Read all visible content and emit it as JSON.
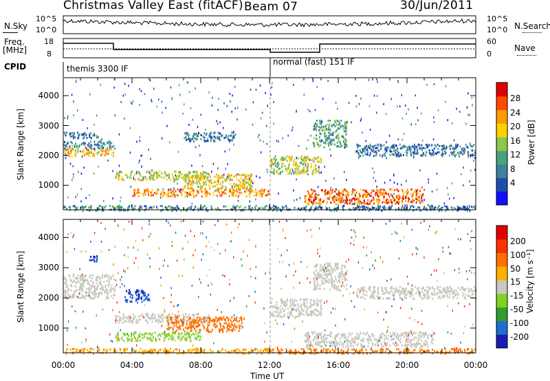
{
  "header": {
    "station": "Christmas Valley East (fitACF)",
    "beam": "Beam 07",
    "date": "30/Jun/2011"
  },
  "param_panels": {
    "nsky_label": "N.Sky",
    "nsearch_label": "N.Search",
    "freq_label": "Freq.",
    "freq_unit": "[MHz]",
    "nave_label": "Nave",
    "cpid_label": "CPID",
    "noise_ticks": [
      "10^5",
      "10^0"
    ],
    "freq_ticks": [
      "18",
      "8"
    ],
    "nave_ticks": [
      "60",
      "0"
    ],
    "cpid_modes": [
      "themis 3300 IF",
      "normal (fast) 151 IF"
    ]
  },
  "colorbars": {
    "power": {
      "label": "Power [dB]",
      "ticks": [
        "28",
        "24",
        "20",
        "16",
        "12",
        "8",
        "4"
      ],
      "colors": [
        "#1010ff",
        "#1e4fa8",
        "#3f7fa0",
        "#4aa27a",
        "#8cc84a",
        "#ffd000",
        "#ff9a00",
        "#ff4a00",
        "#e00000"
      ]
    },
    "velocity": {
      "label": "Velocity [m s⁻¹]",
      "ticks": [
        "200",
        "100",
        "50",
        "15",
        "-15",
        "-50",
        "-100",
        "-200"
      ],
      "colors": [
        "#1a1ab8",
        "#1f6dd0",
        "#2f9c2f",
        "#7ed321",
        "#c8c8c0",
        "#ffb000",
        "#ff7000",
        "#ff3000",
        "#e00000"
      ]
    }
  },
  "chart_data": [
    {
      "type": "heatmap",
      "title": "Power",
      "ylabel": "Slant Range [km]",
      "xlabel": "Time UT",
      "x_ticks": [
        "00:00",
        "04:00",
        "08:00",
        "12:00",
        "16:00",
        "20:00",
        "00:00"
      ],
      "y_ticks": [
        1000,
        2000,
        3000,
        4000
      ],
      "xlim_hours": [
        0,
        24
      ],
      "ylim_km": [
        180,
        4600
      ],
      "zlabel": "Power [dB]",
      "zlim": [
        0,
        30
      ],
      "scatter_bands": [
        {
          "t0": 0.0,
          "t1": 3.0,
          "r0": 2000,
          "r1": 2250,
          "value": 20
        },
        {
          "t0": 0.0,
          "t1": 3.0,
          "r0": 2250,
          "r1": 2500,
          "value": 9
        },
        {
          "t0": 0.0,
          "t1": 2.0,
          "r0": 2600,
          "r1": 2800,
          "value": 8
        },
        {
          "t0": 3.0,
          "t1": 8.5,
          "r0": 1200,
          "r1": 1500,
          "value": 16
        },
        {
          "t0": 4.0,
          "t1": 12.0,
          "r0": 650,
          "r1": 900,
          "value": 22
        },
        {
          "t0": 7.0,
          "t1": 11.0,
          "r0": 900,
          "r1": 1400,
          "value": 18
        },
        {
          "t0": 7.0,
          "t1": 10.0,
          "r0": 2500,
          "r1": 2800,
          "value": 8
        },
        {
          "t0": 0.0,
          "t1": 12.0,
          "r0": 180,
          "r1": 350,
          "value": 10
        },
        {
          "t0": 12.0,
          "t1": 15.0,
          "r0": 1400,
          "r1": 2000,
          "value": 16
        },
        {
          "t0": 14.0,
          "t1": 21.0,
          "r0": 400,
          "r1": 900,
          "value": 24
        },
        {
          "t0": 14.5,
          "t1": 16.5,
          "r0": 2300,
          "r1": 3200,
          "value": 12
        },
        {
          "t0": 17.0,
          "t1": 24.0,
          "r0": 2000,
          "r1": 2400,
          "value": 8
        },
        {
          "t0": 12.0,
          "t1": 24.0,
          "r0": 180,
          "r1": 350,
          "value": 8
        }
      ]
    },
    {
      "type": "heatmap",
      "title": "Velocity",
      "ylabel": "Slant Range [km]",
      "xlabel": "Time UT",
      "x_ticks": [
        "00:00",
        "04:00",
        "08:00",
        "12:00",
        "16:00",
        "20:00",
        "00:00"
      ],
      "y_ticks": [
        1000,
        2000,
        3000,
        4000
      ],
      "xlim_hours": [
        0,
        24
      ],
      "ylim_km": [
        180,
        4600
      ],
      "zlabel": "Velocity [m s⁻¹]",
      "zlim": [
        -200,
        200
      ],
      "scatter_bands": [
        {
          "t0": 0.0,
          "t1": 3.0,
          "r0": 2000,
          "r1": 2800,
          "value": 0
        },
        {
          "t0": 1.5,
          "t1": 2.0,
          "r0": 3200,
          "r1": 3450,
          "value": 200
        },
        {
          "t0": 3.5,
          "t1": 5.0,
          "r0": 1900,
          "r1": 2300,
          "value": 200
        },
        {
          "t0": 3.0,
          "t1": 8.5,
          "r0": 1200,
          "r1": 1500,
          "value": 0
        },
        {
          "t0": 3.0,
          "t1": 8.0,
          "r0": 600,
          "r1": 900,
          "value": 25
        },
        {
          "t0": 6.0,
          "t1": 10.5,
          "r0": 900,
          "r1": 1400,
          "value": -70
        },
        {
          "t0": 0.0,
          "t1": 12.0,
          "r0": 180,
          "r1": 350,
          "value": -40
        },
        {
          "t0": 12.0,
          "t1": 15.0,
          "r0": 1400,
          "r1": 2000,
          "value": 0
        },
        {
          "t0": 14.0,
          "t1": 21.5,
          "r0": 400,
          "r1": 900,
          "value": 0
        },
        {
          "t0": 14.5,
          "t1": 16.5,
          "r0": 2300,
          "r1": 3200,
          "value": 0
        },
        {
          "t0": 17.0,
          "t1": 24.0,
          "r0": 2000,
          "r1": 2400,
          "value": 0
        },
        {
          "t0": 12.0,
          "t1": 24.0,
          "r0": 180,
          "r1": 350,
          "value": -60
        }
      ]
    }
  ]
}
